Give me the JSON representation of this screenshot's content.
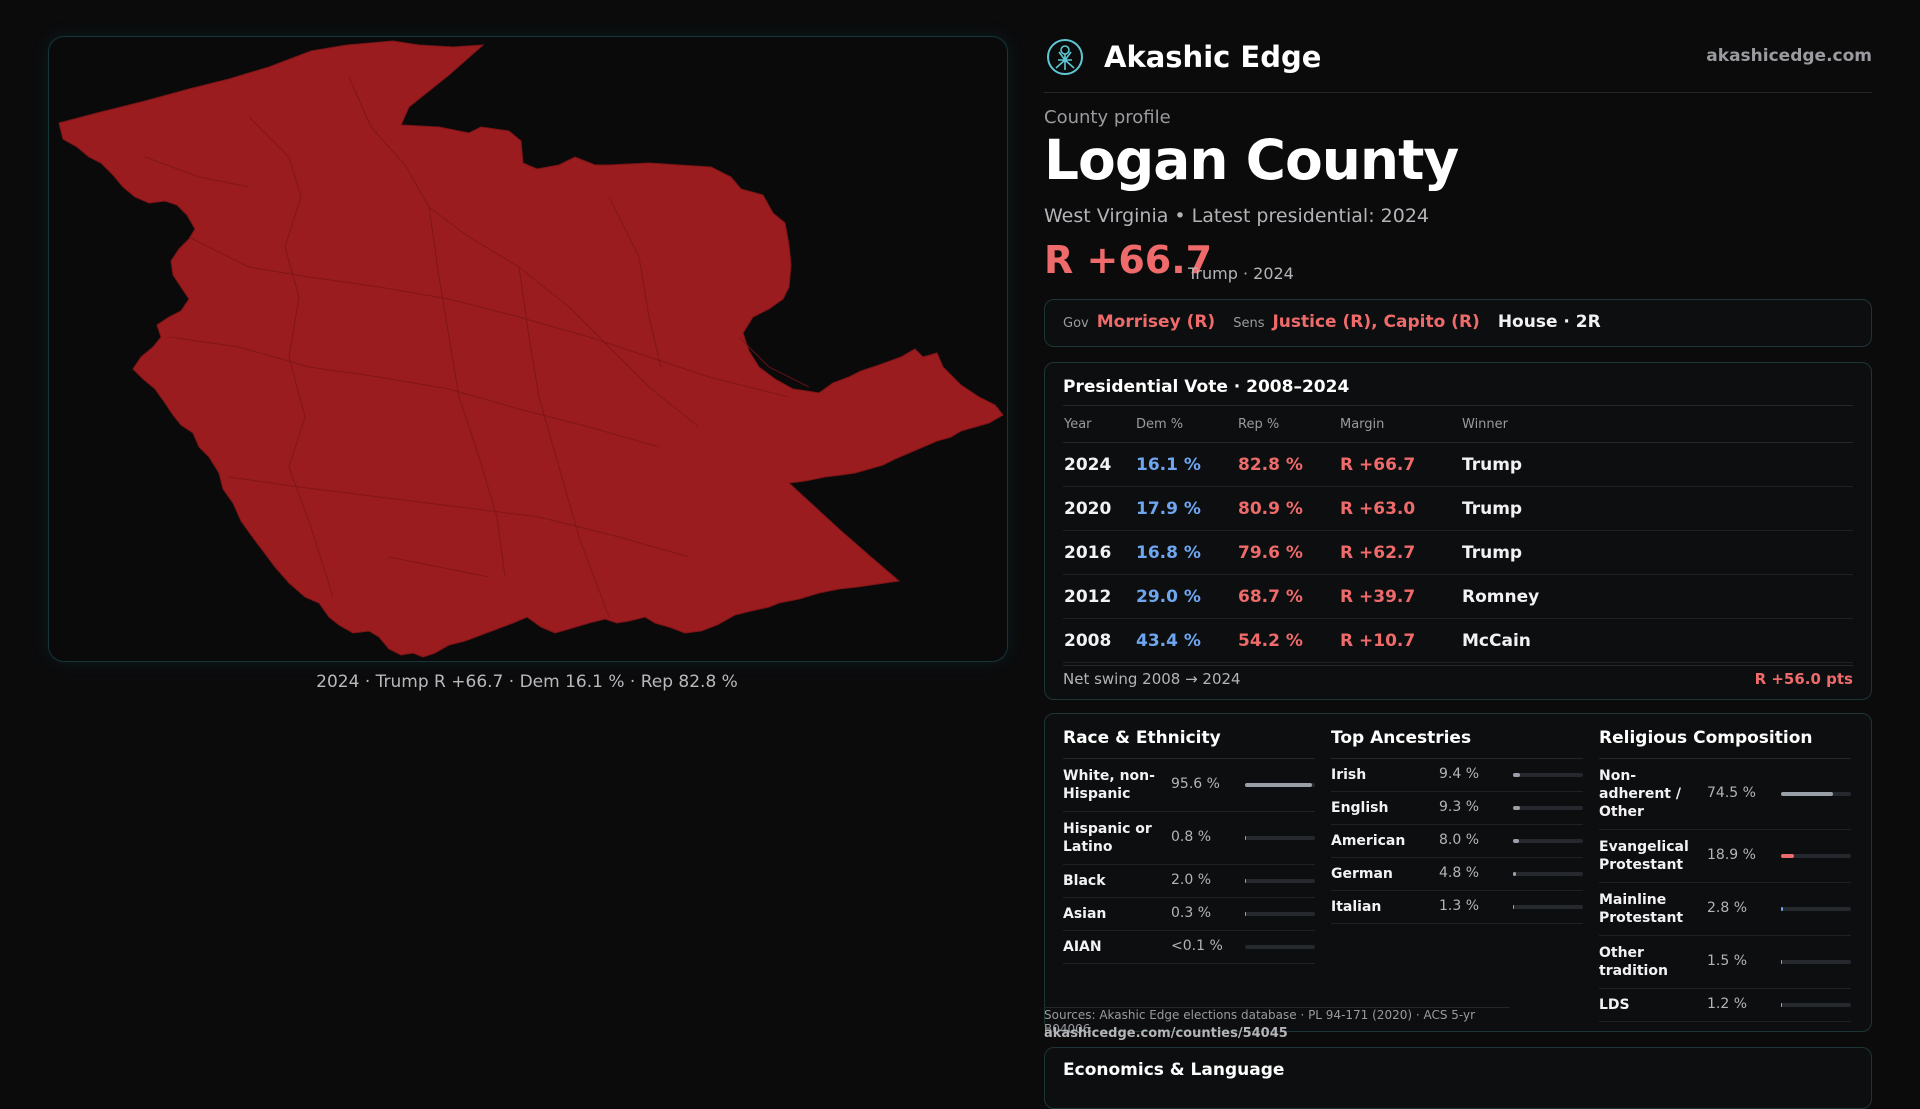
{
  "map": {
    "caption": "2024 · Trump R +66.7 · Dem 16.1 % · Rep 82.8 %",
    "fill_color": "#9b1c1f"
  },
  "header": {
    "brand": "Akashic Edge",
    "domain": "akashicedge.com",
    "logo_icon": "tree-of-life-icon"
  },
  "profile": {
    "eyebrow": "County profile",
    "title": "Logan County",
    "subtitle": "West Virginia • Latest presidential: 2024",
    "margin": "R +66.7",
    "margin_note": "Trump · 2024"
  },
  "officials": {
    "gov_label": "Gov",
    "gov": "Morrisey (R)",
    "sens_label": "Sens",
    "sens": "Justice (R), Capito (R)",
    "house": "House · 2R"
  },
  "presidential": {
    "title": "Presidential Vote · 2008–2024",
    "headers": [
      "Year",
      "Dem %",
      "Rep %",
      "Margin",
      "Winner"
    ],
    "rows": [
      {
        "year": "2024",
        "dem": "16.1 %",
        "rep": "82.8 %",
        "margin": "R +66.7",
        "winner": "Trump"
      },
      {
        "year": "2020",
        "dem": "17.9 %",
        "rep": "80.9 %",
        "margin": "R +63.0",
        "winner": "Trump"
      },
      {
        "year": "2016",
        "dem": "16.8 %",
        "rep": "79.6 %",
        "margin": "R +62.7",
        "winner": "Trump"
      },
      {
        "year": "2012",
        "dem": "29.0 %",
        "rep": "68.7 %",
        "margin": "R +39.7",
        "winner": "Romney"
      },
      {
        "year": "2008",
        "dem": "43.4 %",
        "rep": "54.2 %",
        "margin": "R +10.7",
        "winner": "McCain"
      }
    ],
    "swing_label": "Net swing 2008 → 2024",
    "swing_value": "R +56.0 pts"
  },
  "race": {
    "title": "Race & Ethnicity",
    "items": [
      {
        "name": "White, non-Hispanic",
        "value": "95.6 %",
        "pct": 95.6,
        "color": "#9aa0a8"
      },
      {
        "name": "Hispanic or Latino",
        "value": "0.8 %",
        "pct": 0.8,
        "color": "#9aa0a8"
      },
      {
        "name": "Black",
        "value": "2.0 %",
        "pct": 2.0,
        "color": "#9aa0a8"
      },
      {
        "name": "Asian",
        "value": "0.3 %",
        "pct": 0.3,
        "color": "#9aa0a8"
      },
      {
        "name": "AIAN",
        "value": "<0.1 %",
        "pct": 0.05,
        "color": "#9aa0a8"
      }
    ]
  },
  "ancestry": {
    "title": "Top Ancestries",
    "items": [
      {
        "name": "Irish",
        "value": "9.4 %",
        "pct": 9.4,
        "color": "#9aa0a8"
      },
      {
        "name": "English",
        "value": "9.3 %",
        "pct": 9.3,
        "color": "#9aa0a8"
      },
      {
        "name": "American",
        "value": "8.0 %",
        "pct": 8.0,
        "color": "#9aa0a8"
      },
      {
        "name": "German",
        "value": "4.8 %",
        "pct": 4.8,
        "color": "#9aa0a8"
      },
      {
        "name": "Italian",
        "value": "1.3 %",
        "pct": 1.3,
        "color": "#9aa0a8"
      }
    ]
  },
  "religion": {
    "title": "Religious Composition",
    "items": [
      {
        "name": "Non-adherent / Other",
        "value": "74.5 %",
        "pct": 74.5,
        "color": "#9aa0a8"
      },
      {
        "name": "Evangelical Protestant",
        "value": "18.9 %",
        "pct": 18.9,
        "color": "#ef6a6a"
      },
      {
        "name": "Mainline Protestant",
        "value": "2.8 %",
        "pct": 2.8,
        "color": "#6ea6f0"
      },
      {
        "name": "Other tradition",
        "value": "1.5 %",
        "pct": 1.5,
        "color": "#9aa0a8"
      },
      {
        "name": "LDS",
        "value": "1.2 %",
        "pct": 1.2,
        "color": "#5fc7c7"
      }
    ]
  },
  "footer": {
    "sources": "Sources: Akashic Edge elections database · PL 94-171 (2020) · ACS 5-yr B04006",
    "url": "akashicedge.com/counties/54045"
  },
  "econ": {
    "title": "Economics & Language"
  }
}
